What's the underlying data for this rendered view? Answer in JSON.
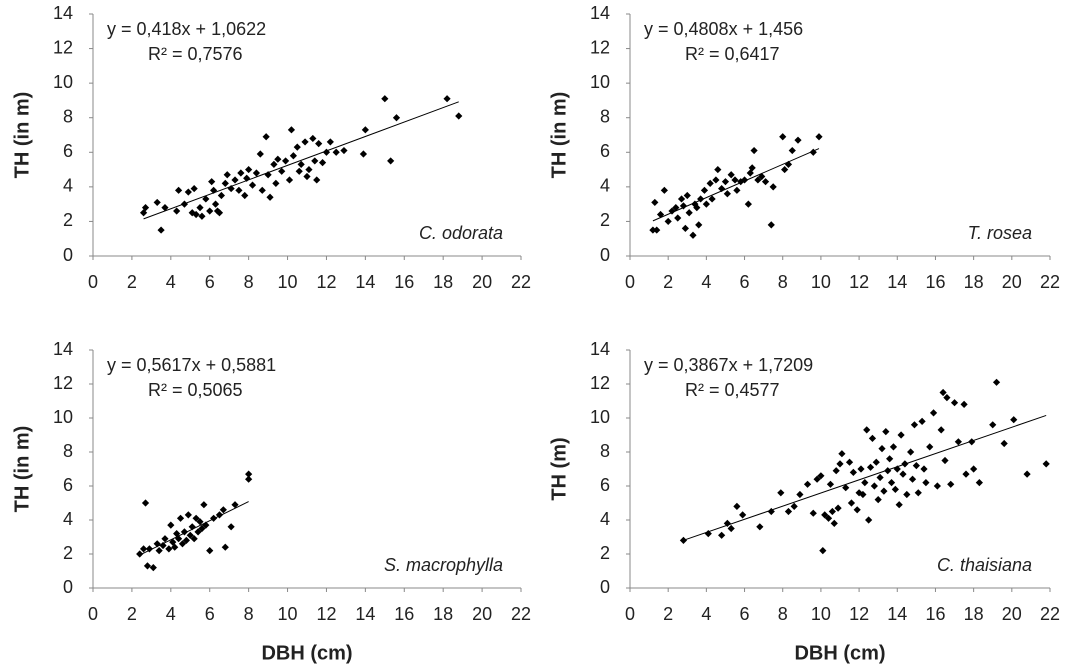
{
  "chart_data": [
    {
      "type": "scatter",
      "ylabel": "TH (in m)",
      "annotation": "C. odorata",
      "color": "#000000",
      "trendline": {
        "equation": "y = 0,418x + 1,0622",
        "r2": "R² = 0,7576",
        "slope": 0.418,
        "intercept": 1.0622
      },
      "xlim": [
        0,
        22
      ],
      "ylim": [
        0,
        14
      ],
      "xticks": [
        0,
        2,
        4,
        6,
        8,
        10,
        12,
        14,
        16,
        18,
        20,
        22
      ],
      "yticks": [
        0,
        2,
        4,
        6,
        8,
        10,
        12,
        14
      ],
      "x": [
        2.6,
        2.7,
        3.3,
        3.5,
        3.7,
        4.3,
        4.4,
        4.7,
        4.9,
        5.1,
        5.2,
        5.3,
        5.5,
        5.6,
        5.8,
        6.0,
        6.1,
        6.2,
        6.3,
        6.4,
        6.5,
        6.6,
        6.8,
        6.9,
        7.1,
        7.3,
        7.5,
        7.6,
        7.8,
        7.9,
        8.0,
        8.2,
        8.4,
        8.6,
        8.7,
        8.9,
        9.0,
        9.1,
        9.3,
        9.4,
        9.5,
        9.7,
        9.9,
        10.1,
        10.2,
        10.3,
        10.5,
        10.6,
        10.7,
        10.9,
        11.0,
        11.1,
        11.3,
        11.4,
        11.5,
        11.6,
        11.8,
        12.0,
        12.2,
        12.5,
        12.9,
        13.9,
        14.0,
        15.0,
        15.3,
        15.6,
        18.2,
        18.8
      ],
      "values": [
        2.5,
        2.8,
        3.1,
        1.5,
        2.8,
        2.6,
        3.8,
        3.0,
        3.7,
        2.5,
        3.9,
        2.4,
        2.8,
        2.3,
        3.3,
        2.6,
        4.3,
        3.8,
        3.0,
        2.6,
        2.5,
        3.5,
        4.2,
        4.7,
        3.9,
        4.4,
        3.8,
        4.8,
        3.5,
        4.5,
        5.0,
        4.1,
        4.8,
        5.9,
        3.8,
        6.9,
        4.7,
        3.4,
        5.3,
        4.2,
        5.6,
        4.9,
        5.5,
        4.4,
        7.3,
        5.8,
        6.3,
        4.9,
        5.3,
        6.6,
        4.6,
        5.0,
        6.8,
        5.5,
        4.4,
        6.5,
        5.4,
        6.0,
        6.6,
        6.0,
        6.1,
        5.9,
        7.3,
        9.1,
        5.5,
        8.0,
        9.1,
        8.1
      ]
    },
    {
      "type": "scatter",
      "ylabel": "TH (in m)",
      "annotation": "T. rosea",
      "color": "#000000",
      "trendline": {
        "equation": "y = 0,4808x + 1,456",
        "r2": "R² = 0,6417",
        "slope": 0.4808,
        "intercept": 1.456
      },
      "xlim": [
        0,
        22
      ],
      "ylim": [
        0,
        14
      ],
      "xticks": [
        0,
        2,
        4,
        6,
        8,
        10,
        12,
        14,
        16,
        18,
        20,
        22
      ],
      "yticks": [
        0,
        2,
        4,
        6,
        8,
        10,
        12,
        14
      ],
      "x": [
        1.2,
        1.3,
        1.4,
        1.6,
        1.8,
        2.0,
        2.2,
        2.4,
        2.5,
        2.7,
        2.8,
        2.9,
        3.0,
        3.1,
        3.3,
        3.4,
        3.5,
        3.6,
        3.7,
        3.9,
        4.0,
        4.2,
        4.3,
        4.5,
        4.6,
        4.8,
        5.0,
        5.1,
        5.3,
        5.5,
        5.6,
        5.8,
        6.0,
        6.2,
        6.3,
        6.4,
        6.5,
        6.7,
        6.9,
        7.1,
        7.4,
        7.5,
        8.0,
        8.1,
        8.3,
        8.5,
        8.8,
        9.6,
        9.9
      ],
      "values": [
        1.5,
        3.1,
        1.5,
        2.4,
        3.8,
        2.0,
        2.6,
        2.8,
        2.2,
        3.3,
        2.9,
        1.6,
        3.5,
        2.5,
        1.2,
        3.0,
        2.8,
        1.8,
        3.3,
        3.8,
        3.0,
        4.2,
        3.3,
        4.4,
        5.0,
        3.9,
        4.3,
        3.6,
        4.7,
        4.4,
        3.8,
        4.3,
        4.4,
        3.0,
        4.8,
        5.1,
        6.1,
        4.4,
        4.6,
        4.3,
        1.8,
        4.0,
        6.9,
        5.0,
        5.3,
        6.1,
        6.7,
        6.0,
        6.9
      ]
    },
    {
      "type": "scatter",
      "ylabel": "TH (in m)",
      "xlabel": "DBH (cm)",
      "annotation": "S. macrophylla",
      "color": "#000000",
      "trendline": {
        "equation": "y = 0,5617x + 0,5881",
        "r2": "R² = 0,5065",
        "slope": 0.5617,
        "intercept": 0.5881
      },
      "xlim": [
        0,
        22
      ],
      "ylim": [
        0,
        14
      ],
      "xticks": [
        0,
        2,
        4,
        6,
        8,
        10,
        12,
        14,
        16,
        18,
        20,
        22
      ],
      "yticks": [
        0,
        2,
        4,
        6,
        8,
        10,
        12,
        14
      ],
      "x": [
        2.4,
        2.6,
        2.7,
        2.8,
        2.9,
        3.1,
        3.3,
        3.4,
        3.6,
        3.7,
        3.9,
        4.0,
        4.1,
        4.2,
        4.3,
        4.4,
        4.5,
        4.6,
        4.7,
        4.8,
        4.9,
        5.0,
        5.1,
        5.2,
        5.3,
        5.4,
        5.5,
        5.6,
        5.7,
        5.8,
        6.0,
        6.2,
        6.5,
        6.7,
        6.8,
        7.1,
        7.3,
        8.0,
        8.0
      ],
      "values": [
        2.0,
        2.3,
        5.0,
        1.3,
        2.3,
        1.2,
        2.6,
        2.2,
        2.5,
        2.9,
        2.3,
        3.7,
        2.7,
        2.4,
        3.2,
        2.9,
        4.1,
        2.6,
        3.3,
        2.8,
        4.3,
        3.1,
        3.6,
        2.9,
        4.1,
        3.3,
        3.9,
        3.5,
        4.9,
        3.7,
        2.2,
        4.1,
        4.3,
        4.6,
        2.4,
        3.6,
        4.9,
        6.4,
        6.7
      ]
    },
    {
      "type": "scatter",
      "ylabel": "TH (m)",
      "xlabel": "DBH (cm)",
      "annotation": "C. thaisiana",
      "color": "#000000",
      "trendline": {
        "equation": "y = 0,3867x + 1,7209",
        "r2": "R² = 0,4577",
        "slope": 0.3867,
        "intercept": 1.7209
      },
      "xlim": [
        0,
        22
      ],
      "ylim": [
        0,
        14
      ],
      "xticks": [
        0,
        2,
        4,
        6,
        8,
        10,
        12,
        14,
        16,
        18,
        20,
        22
      ],
      "yticks": [
        0,
        2,
        4,
        6,
        8,
        10,
        12,
        14
      ],
      "x": [
        2.8,
        4.1,
        4.8,
        5.1,
        5.3,
        5.6,
        5.9,
        6.8,
        7.4,
        7.9,
        8.3,
        8.6,
        8.9,
        9.3,
        9.6,
        9.8,
        10.0,
        10.1,
        10.2,
        10.4,
        10.5,
        10.6,
        10.7,
        10.8,
        10.9,
        11.0,
        11.1,
        11.3,
        11.5,
        11.6,
        11.7,
        11.9,
        12.0,
        12.1,
        12.2,
        12.3,
        12.4,
        12.5,
        12.6,
        12.7,
        12.8,
        12.9,
        13.0,
        13.1,
        13.2,
        13.3,
        13.4,
        13.5,
        13.6,
        13.7,
        13.8,
        13.9,
        14.0,
        14.1,
        14.2,
        14.3,
        14.4,
        14.5,
        14.7,
        14.8,
        14.9,
        15.0,
        15.1,
        15.3,
        15.4,
        15.5,
        15.7,
        15.9,
        16.1,
        16.3,
        16.4,
        16.5,
        16.6,
        16.8,
        17.0,
        17.2,
        17.5,
        17.6,
        17.9,
        18.0,
        18.3,
        19.0,
        19.2,
        19.6,
        20.1,
        20.8,
        21.8
      ],
      "values": [
        2.8,
        3.2,
        3.1,
        3.8,
        3.5,
        4.8,
        4.3,
        3.6,
        4.5,
        5.6,
        4.5,
        4.8,
        5.5,
        6.1,
        4.4,
        6.4,
        6.6,
        2.2,
        4.3,
        4.1,
        6.1,
        4.5,
        3.8,
        6.9,
        4.7,
        7.3,
        7.9,
        5.9,
        7.4,
        5.0,
        6.8,
        4.6,
        5.6,
        7.0,
        5.5,
        6.2,
        9.3,
        4.0,
        7.1,
        8.8,
        6.0,
        7.4,
        5.2,
        6.5,
        8.2,
        5.7,
        9.2,
        6.9,
        7.6,
        6.2,
        8.3,
        5.8,
        7.0,
        4.9,
        9.0,
        6.7,
        7.3,
        5.5,
        8.0,
        6.4,
        9.6,
        7.2,
        5.6,
        9.8,
        7.0,
        6.2,
        8.3,
        10.3,
        6.0,
        9.3,
        11.5,
        7.5,
        11.2,
        6.1,
        10.9,
        8.6,
        10.8,
        6.7,
        8.6,
        7.0,
        6.2,
        9.6,
        12.1,
        8.5,
        9.9,
        6.7,
        7.3
      ]
    }
  ]
}
